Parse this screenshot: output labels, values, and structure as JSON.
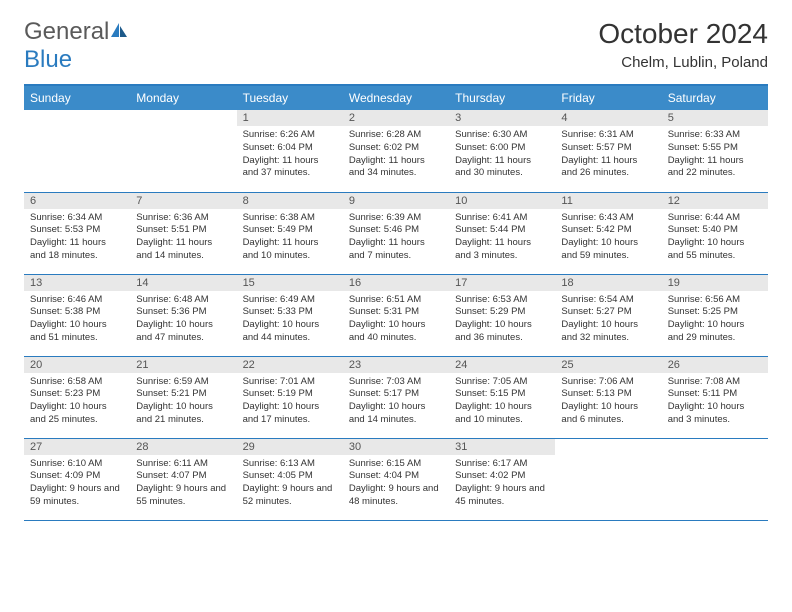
{
  "logo": {
    "part1": "General",
    "part2": "Blue"
  },
  "title": "October 2024",
  "location": "Chelm, Lublin, Poland",
  "colors": {
    "header_bg": "#3b8bc9",
    "header_text": "#ffffff",
    "border": "#2a7bbf",
    "daynum_bg": "#e8e8e8",
    "daynum_text": "#555555",
    "body_text": "#333333",
    "logo_gray": "#5a5a5a",
    "logo_blue": "#2a7bbf"
  },
  "day_headers": [
    "Sunday",
    "Monday",
    "Tuesday",
    "Wednesday",
    "Thursday",
    "Friday",
    "Saturday"
  ],
  "weeks": [
    [
      null,
      null,
      {
        "n": "1",
        "sunrise": "6:26 AM",
        "sunset": "6:04 PM",
        "daylight": "11 hours and 37 minutes."
      },
      {
        "n": "2",
        "sunrise": "6:28 AM",
        "sunset": "6:02 PM",
        "daylight": "11 hours and 34 minutes."
      },
      {
        "n": "3",
        "sunrise": "6:30 AM",
        "sunset": "6:00 PM",
        "daylight": "11 hours and 30 minutes."
      },
      {
        "n": "4",
        "sunrise": "6:31 AM",
        "sunset": "5:57 PM",
        "daylight": "11 hours and 26 minutes."
      },
      {
        "n": "5",
        "sunrise": "6:33 AM",
        "sunset": "5:55 PM",
        "daylight": "11 hours and 22 minutes."
      }
    ],
    [
      {
        "n": "6",
        "sunrise": "6:34 AM",
        "sunset": "5:53 PM",
        "daylight": "11 hours and 18 minutes."
      },
      {
        "n": "7",
        "sunrise": "6:36 AM",
        "sunset": "5:51 PM",
        "daylight": "11 hours and 14 minutes."
      },
      {
        "n": "8",
        "sunrise": "6:38 AM",
        "sunset": "5:49 PM",
        "daylight": "11 hours and 10 minutes."
      },
      {
        "n": "9",
        "sunrise": "6:39 AM",
        "sunset": "5:46 PM",
        "daylight": "11 hours and 7 minutes."
      },
      {
        "n": "10",
        "sunrise": "6:41 AM",
        "sunset": "5:44 PM",
        "daylight": "11 hours and 3 minutes."
      },
      {
        "n": "11",
        "sunrise": "6:43 AM",
        "sunset": "5:42 PM",
        "daylight": "10 hours and 59 minutes."
      },
      {
        "n": "12",
        "sunrise": "6:44 AM",
        "sunset": "5:40 PM",
        "daylight": "10 hours and 55 minutes."
      }
    ],
    [
      {
        "n": "13",
        "sunrise": "6:46 AM",
        "sunset": "5:38 PM",
        "daylight": "10 hours and 51 minutes."
      },
      {
        "n": "14",
        "sunrise": "6:48 AM",
        "sunset": "5:36 PM",
        "daylight": "10 hours and 47 minutes."
      },
      {
        "n": "15",
        "sunrise": "6:49 AM",
        "sunset": "5:33 PM",
        "daylight": "10 hours and 44 minutes."
      },
      {
        "n": "16",
        "sunrise": "6:51 AM",
        "sunset": "5:31 PM",
        "daylight": "10 hours and 40 minutes."
      },
      {
        "n": "17",
        "sunrise": "6:53 AM",
        "sunset": "5:29 PM",
        "daylight": "10 hours and 36 minutes."
      },
      {
        "n": "18",
        "sunrise": "6:54 AM",
        "sunset": "5:27 PM",
        "daylight": "10 hours and 32 minutes."
      },
      {
        "n": "19",
        "sunrise": "6:56 AM",
        "sunset": "5:25 PM",
        "daylight": "10 hours and 29 minutes."
      }
    ],
    [
      {
        "n": "20",
        "sunrise": "6:58 AM",
        "sunset": "5:23 PM",
        "daylight": "10 hours and 25 minutes."
      },
      {
        "n": "21",
        "sunrise": "6:59 AM",
        "sunset": "5:21 PM",
        "daylight": "10 hours and 21 minutes."
      },
      {
        "n": "22",
        "sunrise": "7:01 AM",
        "sunset": "5:19 PM",
        "daylight": "10 hours and 17 minutes."
      },
      {
        "n": "23",
        "sunrise": "7:03 AM",
        "sunset": "5:17 PM",
        "daylight": "10 hours and 14 minutes."
      },
      {
        "n": "24",
        "sunrise": "7:05 AM",
        "sunset": "5:15 PM",
        "daylight": "10 hours and 10 minutes."
      },
      {
        "n": "25",
        "sunrise": "7:06 AM",
        "sunset": "5:13 PM",
        "daylight": "10 hours and 6 minutes."
      },
      {
        "n": "26",
        "sunrise": "7:08 AM",
        "sunset": "5:11 PM",
        "daylight": "10 hours and 3 minutes."
      }
    ],
    [
      {
        "n": "27",
        "sunrise": "6:10 AM",
        "sunset": "4:09 PM",
        "daylight": "9 hours and 59 minutes."
      },
      {
        "n": "28",
        "sunrise": "6:11 AM",
        "sunset": "4:07 PM",
        "daylight": "9 hours and 55 minutes."
      },
      {
        "n": "29",
        "sunrise": "6:13 AM",
        "sunset": "4:05 PM",
        "daylight": "9 hours and 52 minutes."
      },
      {
        "n": "30",
        "sunrise": "6:15 AM",
        "sunset": "4:04 PM",
        "daylight": "9 hours and 48 minutes."
      },
      {
        "n": "31",
        "sunrise": "6:17 AM",
        "sunset": "4:02 PM",
        "daylight": "9 hours and 45 minutes."
      },
      null,
      null
    ]
  ],
  "labels": {
    "sunrise": "Sunrise:",
    "sunset": "Sunset:",
    "daylight": "Daylight:"
  }
}
